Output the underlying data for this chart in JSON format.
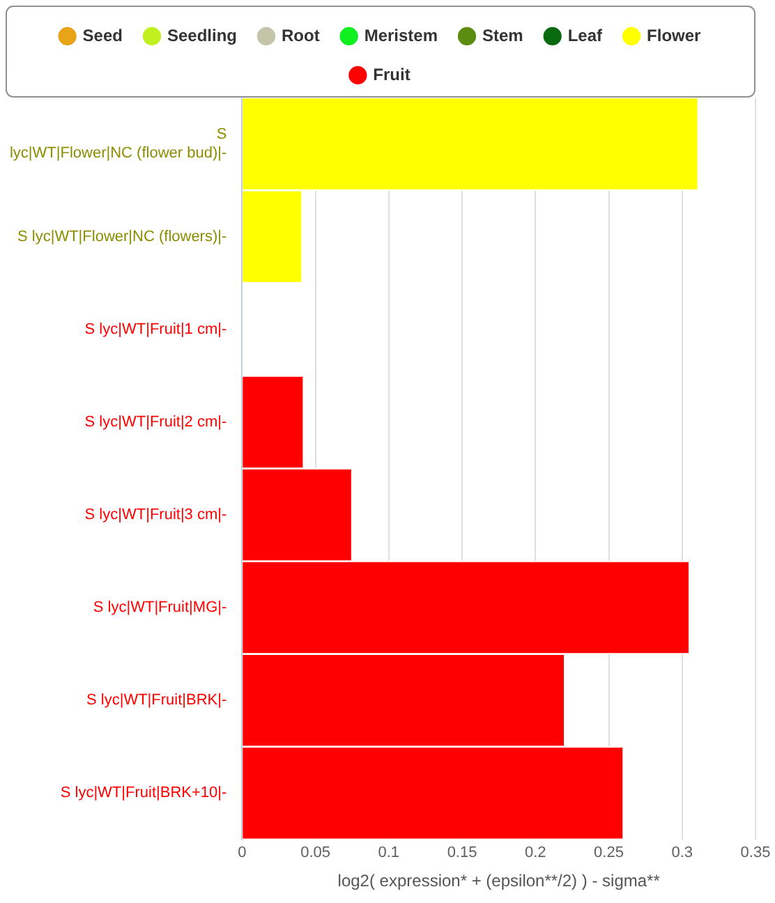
{
  "chart_data": {
    "type": "bar",
    "orientation": "horizontal",
    "stacked": true,
    "xlabel": "log2( expression* + (epsilon**/2) ) - sigma**",
    "categories": [
      "S lyc|WT|Flower|NC (flower bud)|-",
      "S lyc|WT|Flower|NC (flowers)|-",
      "S lyc|WT|Fruit|1 cm|-",
      "S lyc|WT|Fruit|2 cm|-",
      "S lyc|WT|Fruit|3 cm|-",
      "S lyc|WT|Fruit|MG|-",
      "S lyc|WT|Fruit|BRK|-",
      "S lyc|WT|Fruit|BRK+10|-"
    ],
    "series": [
      {
        "name": "Seed",
        "color": "#e8a317",
        "values": [
          null,
          null,
          null,
          null,
          null,
          null,
          null,
          null
        ]
      },
      {
        "name": "Seedling",
        "color": "#c0f020",
        "values": [
          null,
          null,
          null,
          null,
          null,
          null,
          null,
          null
        ]
      },
      {
        "name": "Root",
        "color": "#c4c4a8",
        "values": [
          null,
          null,
          null,
          null,
          null,
          null,
          null,
          null
        ]
      },
      {
        "name": "Meristem",
        "color": "#10f020",
        "values": [
          null,
          null,
          null,
          null,
          null,
          null,
          null,
          null
        ]
      },
      {
        "name": "Stem",
        "color": "#5c8c10",
        "values": [
          null,
          null,
          null,
          null,
          null,
          null,
          null,
          null
        ]
      },
      {
        "name": "Leaf",
        "color": "#0a6a10",
        "values": [
          null,
          null,
          null,
          null,
          null,
          null,
          null,
          null
        ]
      },
      {
        "name": "Flower",
        "color": "#ffff00",
        "values": [
          0.311,
          0.041,
          null,
          null,
          null,
          null,
          null,
          null
        ]
      },
      {
        "name": "Fruit",
        "color": "#ff0000",
        "values": [
          null,
          null,
          0,
          0.042,
          0.075,
          0.305,
          0.22,
          0.26
        ]
      }
    ],
    "xlim": [
      0,
      0.35
    ],
    "xticks": [
      0,
      0.05,
      0.1,
      0.15,
      0.2,
      0.25,
      0.3,
      0.35
    ],
    "grid": "x",
    "legend": "top"
  }
}
